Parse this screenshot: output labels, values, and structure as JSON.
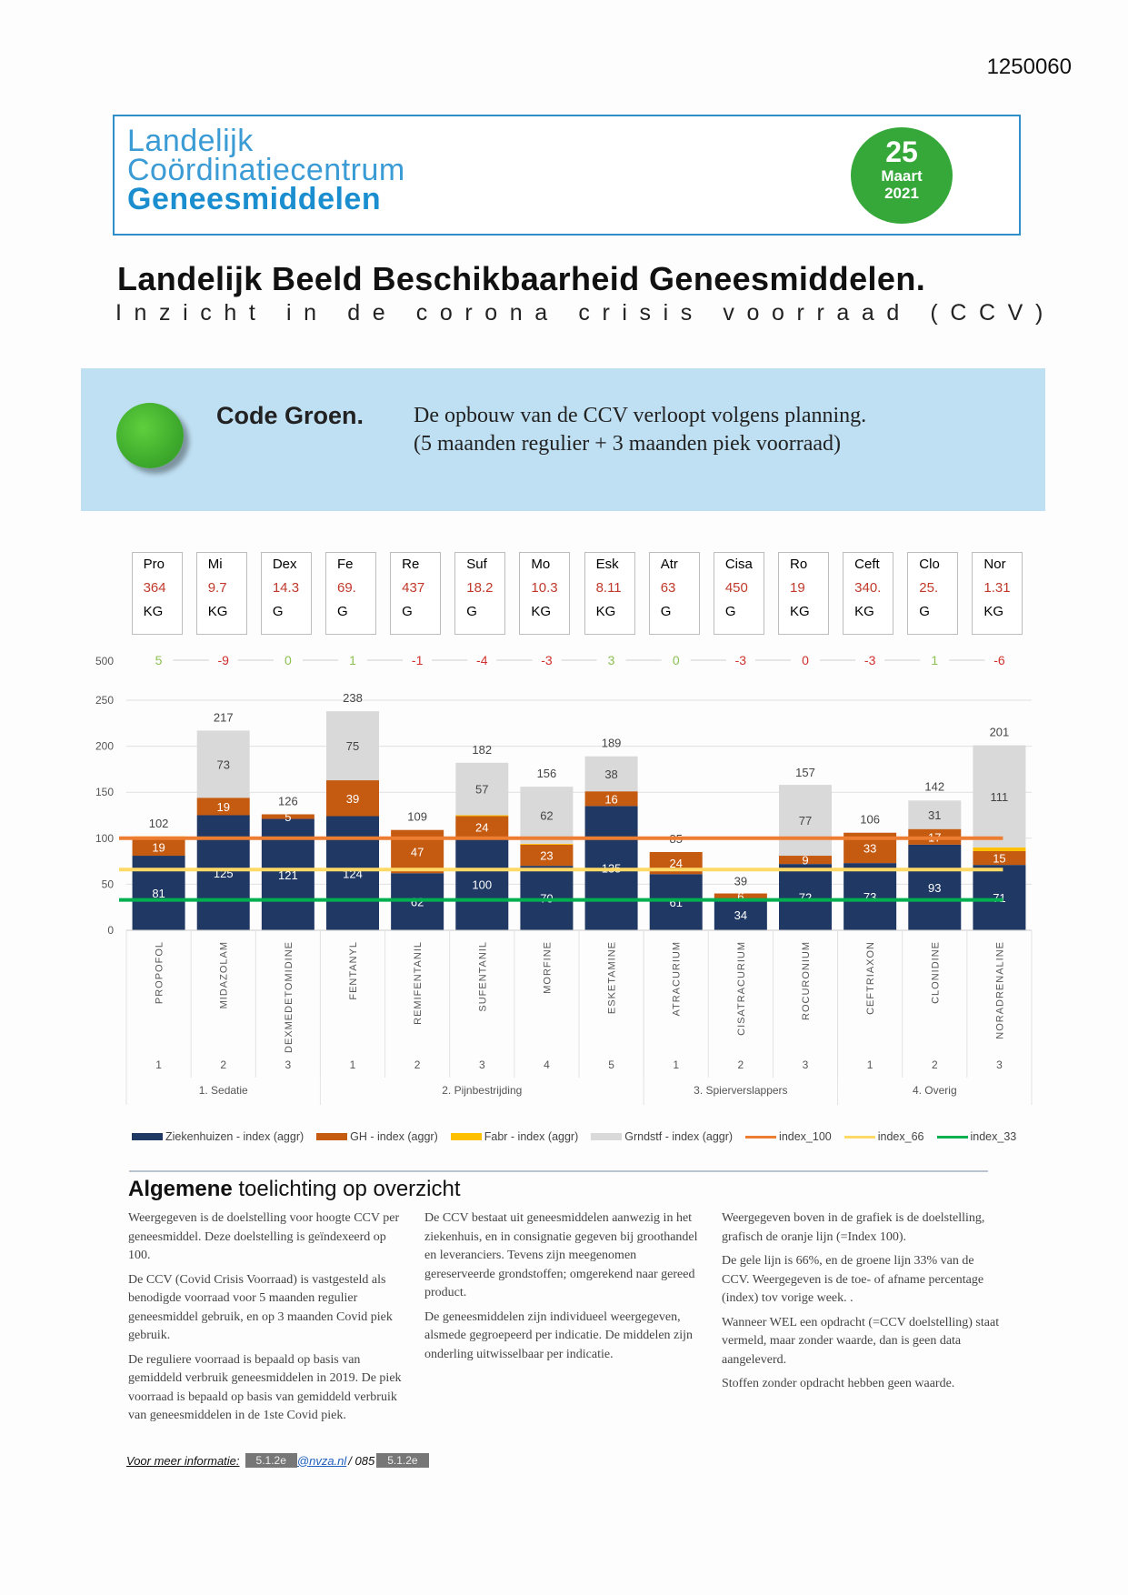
{
  "doc_number": "1250060",
  "logo": {
    "line1": "Landelijk",
    "line2": "Coördinatiecentrum",
    "line3": "Geneesmiddelen"
  },
  "date_badge": {
    "day": "25",
    "month": "Maart",
    "year": "2021"
  },
  "title": "Landelijk Beeld Beschikbaarheid Geneesmiddelen.",
  "subtitle": "Inzicht in de corona crisis voorraad (CCV)",
  "status": {
    "color": "#3aa52a",
    "code": "Code Groen.",
    "line1": "De opbouw van de CCV verloopt volgens planning.",
    "line2": "(5 maanden regulier + 3 maanden piek voorraad)"
  },
  "kpis": [
    {
      "abbr": "Pro",
      "value": "364",
      "unit": "KG"
    },
    {
      "abbr": "Mi",
      "value": "9.7",
      "unit": "KG"
    },
    {
      "abbr": "Dex",
      "value": "14.3",
      "unit": "G"
    },
    {
      "abbr": "Fe",
      "value": "69.",
      "unit": "G"
    },
    {
      "abbr": "Re",
      "value": "437",
      "unit": "G"
    },
    {
      "abbr": "Suf",
      "value": "18.2",
      "unit": "G"
    },
    {
      "abbr": "Mo",
      "value": "10.3",
      "unit": "KG"
    },
    {
      "abbr": "Esk",
      "value": "8.11",
      "unit": "KG"
    },
    {
      "abbr": "Atr",
      "value": "63",
      "unit": "G"
    },
    {
      "abbr": "Cisa",
      "value": "450",
      "unit": "G"
    },
    {
      "abbr": "Ro",
      "value": "19",
      "unit": "KG"
    },
    {
      "abbr": "Ceft",
      "value": "340.",
      "unit": "KG"
    },
    {
      "abbr": "Clo",
      "value": "25.",
      "unit": "G"
    },
    {
      "abbr": "Nor",
      "value": "1.31",
      "unit": "KG"
    }
  ],
  "trend": {
    "axis_label": "500",
    "values": [
      "5",
      "-9",
      "0",
      "1",
      "-1",
      "-4",
      "-3",
      "3",
      "0",
      "-3",
      "0",
      "-3",
      "1",
      "-6"
    ],
    "colors": [
      "#8cc152",
      "#d0312d",
      "#8cc152",
      "#8cc152",
      "#d0312d",
      "#d0312d",
      "#d0312d",
      "#8cc152",
      "#8cc152",
      "#d0312d",
      "#d0312d",
      "#d0312d",
      "#8cc152",
      "#d0312d"
    ]
  },
  "chart_data": {
    "type": "bar",
    "stacked": true,
    "ylim": [
      0,
      250
    ],
    "yticks": [
      "0",
      "50",
      "100",
      "150",
      "200",
      "250"
    ],
    "grid": true,
    "legend_position": "bottom",
    "categories": [
      "PROPOFOL",
      "MIDAZOLAM",
      "DEXMEDETOMIDINE",
      "FENTANYL",
      "REMIFENTANIL",
      "SUFENTANIL",
      "MORFINE",
      "ESKETAMINE",
      "ATRACURIUM",
      "CISATRACURIUM",
      "ROCURONIUM",
      "CEFTRIAXON",
      "CLONIDINE",
      "NORADRENALINE"
    ],
    "sub_index": [
      "1",
      "2",
      "3",
      "1",
      "2",
      "3",
      "4",
      "5",
      "1",
      "2",
      "3",
      "1",
      "2",
      "3"
    ],
    "groups": [
      {
        "label": "1. Sedatie",
        "count": 3
      },
      {
        "label": "2. Pijnbestrijding",
        "count": 5
      },
      {
        "label": "3. Spierverslappers",
        "count": 3
      },
      {
        "label": "4. Overig",
        "count": 3
      }
    ],
    "series": [
      {
        "name": "Ziekenhuizen - index (aggr)",
        "color": "#1f3864",
        "values": [
          81,
          125,
          121,
          124,
          62,
          100,
          70,
          135,
          61,
          34,
          72,
          73,
          93,
          71
        ]
      },
      {
        "name": "GH - index (aggr)",
        "color": "#c55a11",
        "values": [
          19,
          19,
          5,
          39,
          47,
          24,
          23,
          16,
          24,
          6,
          9,
          33,
          17,
          15
        ]
      },
      {
        "name": "Fabr - index (aggr)",
        "color": "#ffc000",
        "values": [
          2,
          0,
          0,
          0,
          0,
          1,
          1,
          0,
          0,
          0,
          0,
          0,
          0,
          4
        ]
      },
      {
        "name": "Grndstf - index (aggr)",
        "color": "#d9d9d9",
        "values": [
          0,
          73,
          0,
          75,
          0,
          57,
          62,
          38,
          0,
          0,
          77,
          0,
          31,
          111
        ]
      }
    ],
    "totals": [
      102,
      217,
      126,
      238,
      109,
      182,
      156,
      189,
      85,
      39,
      157,
      106,
      142,
      201
    ],
    "reference_lines": [
      {
        "name": "index_100",
        "value": 100,
        "color": "#ed7d31"
      },
      {
        "name": "index_66",
        "value": 66,
        "color": "#ffd966"
      },
      {
        "name": "index_33",
        "value": 33,
        "color": "#00b050"
      }
    ]
  },
  "explanation": {
    "title_bold": "Algemene",
    "title_rest": " toelichting op overzicht",
    "columns": [
      [
        "Weergegeven is de doelstelling voor hoogte CCV per geneesmiddel. Deze doelstelling is geïndexeerd op 100.",
        "De CCV (Covid Crisis Voorraad) is vastgesteld als benodigde voorraad voor 5 maanden regulier geneesmiddel gebruik, en op 3 maanden Covid piek gebruik.",
        "De reguliere voorraad is bepaald op basis van gemiddeld verbruik geneesmiddelen in 2019.  De piek voorraad is bepaald op basis van gemiddeld verbruik van geneesmiddelen in de 1ste Covid piek."
      ],
      [
        "De CCV bestaat uit geneesmiddelen aanwezig in het ziekenhuis, en in consignatie gegeven bij groothandel en leveranciers. Tevens zijn meegenomen gereserveerde grondstoffen; omgerekend naar gereed product.",
        "De geneesmiddelen zijn individueel weergegeven, alsmede gegroepeerd per indicatie. De middelen zijn onderling uitwisselbaar per indicatie."
      ],
      [
        "Weergegeven boven in de grafiek is de doelstelling, grafisch de oranje lijn (=Index 100).",
        "De gele lijn is 66%, en de groene lijn 33% van de CCV. Weergegeven is de toe- of afname percentage (index) tov vorige week. .",
        "Wanneer WEL een opdracht (=CCV doelstelling) staat vermeld, maar zonder waarde, dan is geen data aangeleverd.",
        "Stoffen zonder opdracht hebben geen waarde."
      ]
    ]
  },
  "footer": {
    "label": "Voor meer informatie:",
    "redacted1": "5.1.2e",
    "email_domain": "@nvza.nl",
    "phone_prefix": "/ 085",
    "redacted2": "5.1.2e"
  }
}
